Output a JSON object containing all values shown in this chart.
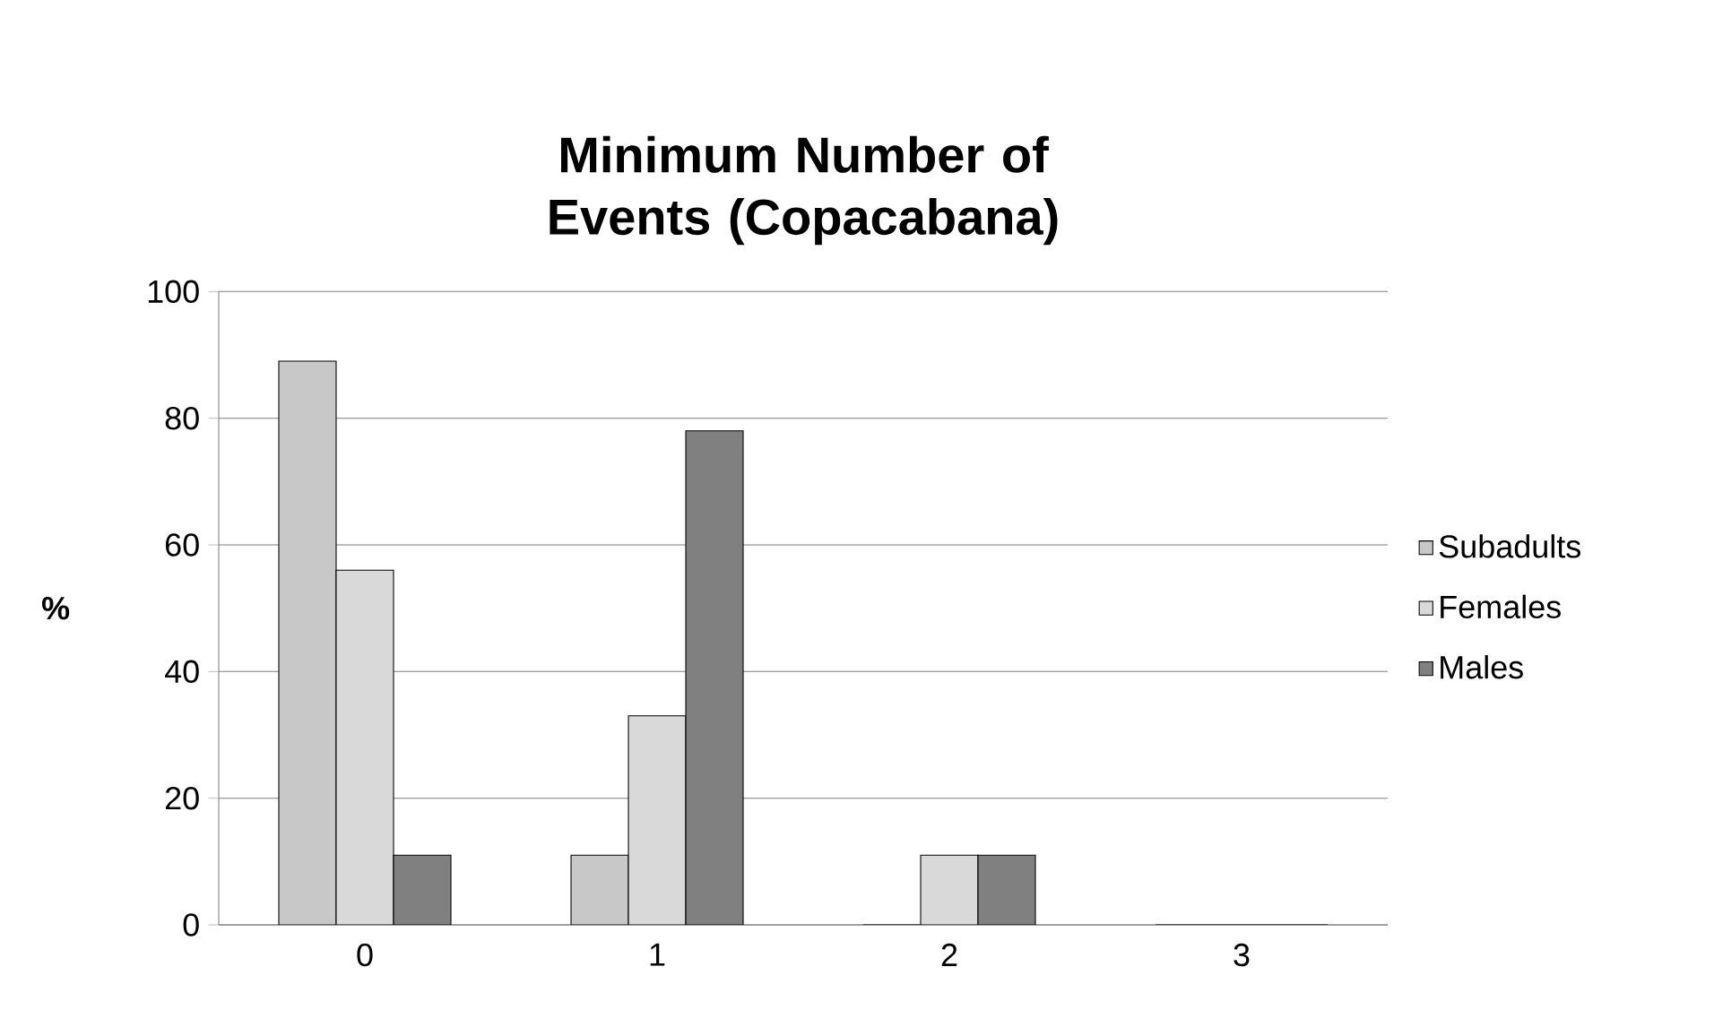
{
  "chart_data": {
    "type": "bar",
    "title": "Minimum Number of Events (Copacabana)",
    "ylabel": "%",
    "categories": [
      "0",
      "1",
      "2",
      "3"
    ],
    "series": [
      {
        "name": "Subadults",
        "color": "#c8c8c8",
        "values": [
          89,
          11,
          0,
          0
        ]
      },
      {
        "name": "Females",
        "color": "#d9d9d9",
        "values": [
          56,
          33,
          11,
          0
        ]
      },
      {
        "name": "Males",
        "color": "#808080",
        "values": [
          11,
          78,
          11,
          0
        ]
      }
    ],
    "ylim": [
      0,
      100
    ],
    "yticks": [
      0,
      20,
      40,
      60,
      80,
      100
    ],
    "grid": "y",
    "legend": "right"
  }
}
